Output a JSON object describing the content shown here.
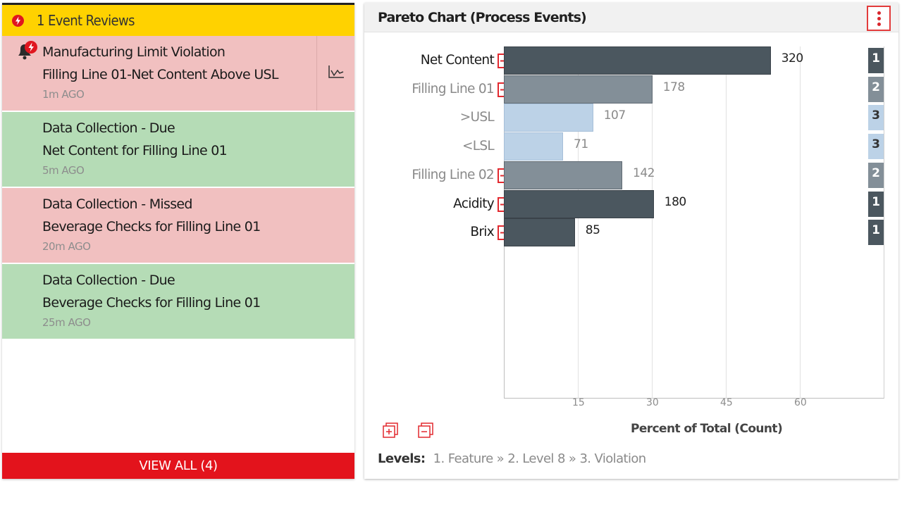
{
  "event_panel": {
    "header": {
      "icon": "bolt-badge-icon",
      "text": "1 Event Reviews"
    },
    "events": [
      {
        "status": "violation",
        "line1": "Manufacturing Limit Violation",
        "line2": "Filling Line 01-Net Content Above USL",
        "time": "1m AGO",
        "icon": "bell-alert-icon",
        "action_icon": "line-chart-icon"
      },
      {
        "status": "due",
        "line1": "Data Collection - Due",
        "line2": "Net Content for Filling Line 01",
        "time": "5m AGO"
      },
      {
        "status": "missed",
        "line1": "Data Collection - Missed",
        "line2": "Beverage Checks for Filling Line 01",
        "time": "20m AGO"
      },
      {
        "status": "due",
        "line1": "Data Collection - Due",
        "line2": "Beverage Checks for Filling Line 01",
        "time": "25m AGO"
      }
    ],
    "view_all_label": "VIEW ALL  (4)"
  },
  "pareto": {
    "title": "Pareto Chart (Process Events)",
    "menu_icon": "vertical-dots-icon",
    "x_axis_title": "Percent of Total (Count)",
    "levels_label": "Levels:",
    "levels_path": "1. Feature » 2. Level 8 » 3. Violation",
    "expand_all_icon": "expand-all-icon",
    "collapse_all_icon": "collapse-all-icon"
  },
  "chart_data": {
    "type": "bar",
    "orientation": "horizontal",
    "xlabel": "Percent of Total (Count)",
    "xticks": [
      15,
      30,
      45,
      60
    ],
    "xlim": [
      0,
      74
    ],
    "colors": {
      "level1": "#4b575f",
      "level2": "#838f98",
      "level3": "#bcd2e7"
    },
    "rows": [
      {
        "label": "Net Content",
        "count": 320,
        "percent": 54.1,
        "level": 1,
        "toggle": "minus"
      },
      {
        "label": "Filling Line 01",
        "count": 178,
        "percent": 30.1,
        "level": 2,
        "toggle": "minus"
      },
      {
        "label": ">USL",
        "count": 107,
        "percent": 18.1,
        "level": 3,
        "toggle": ""
      },
      {
        "label": "<LSL",
        "count": 71,
        "percent": 12.0,
        "level": 3,
        "toggle": ""
      },
      {
        "label": "Filling Line 02",
        "count": 142,
        "percent": 24.0,
        "level": 2,
        "toggle": "plus"
      },
      {
        "label": "Acidity",
        "count": 180,
        "percent": 30.4,
        "level": 1,
        "toggle": "plus"
      },
      {
        "label": "Brix",
        "count": 85,
        "percent": 14.4,
        "level": 1,
        "toggle": "plus"
      }
    ]
  }
}
